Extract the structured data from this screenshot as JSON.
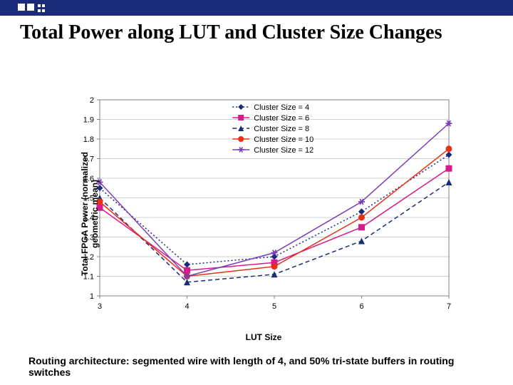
{
  "header": {
    "accent_color": "#1a2b7a"
  },
  "title": "Total Power along LUT and Cluster Size Changes",
  "caption": "Routing architecture: segmented wire with length of 4, and 50% tri-state buffers in routing switches",
  "chart": {
    "type": "line",
    "xlabel": "LUT Size",
    "ylabel_line1": "Total FPGA Power (normalized",
    "ylabel_line2": "geometric mean)",
    "x_values": [
      3,
      4,
      5,
      6,
      7
    ],
    "xlim": [
      3,
      7
    ],
    "ylim": [
      1.0,
      2.0
    ],
    "ytick_step": 0.1,
    "y_ticks": [
      "1",
      "1.1",
      "1.2",
      "1.3",
      "1.4",
      "1.5",
      "1.6",
      "1.7",
      "1.8",
      "1.9",
      "2"
    ],
    "plot_bg": "#ffffff",
    "grid_color": "#d0d0d0",
    "axis_color": "#808080",
    "tick_font_size": 11,
    "label_font_size": 12,
    "legend_font_size": 11,
    "series": [
      {
        "label": "Cluster Size = 4",
        "color": "#1a2b7a",
        "marker": "diamond",
        "dash": "2,3",
        "values": [
          1.55,
          1.16,
          1.2,
          1.43,
          1.72
        ]
      },
      {
        "label": "Cluster Size = 6",
        "color": "#d81b8c",
        "marker": "square",
        "dash": "none",
        "values": [
          1.45,
          1.13,
          1.17,
          1.35,
          1.65
        ]
      },
      {
        "label": "Cluster Size = 8",
        "color": "#1a2b7a",
        "marker": "triangle",
        "dash": "6,4",
        "values": [
          1.5,
          1.07,
          1.11,
          1.28,
          1.58
        ]
      },
      {
        "label": "Cluster Size = 10",
        "color": "#e83015",
        "marker": "circle",
        "dash": "none",
        "values": [
          1.48,
          1.1,
          1.15,
          1.4,
          1.75
        ]
      },
      {
        "label": "Cluster Size = 12",
        "color": "#7a3db8",
        "marker": "star",
        "dash": "none",
        "values": [
          1.58,
          1.1,
          1.22,
          1.48,
          1.88
        ]
      }
    ]
  }
}
